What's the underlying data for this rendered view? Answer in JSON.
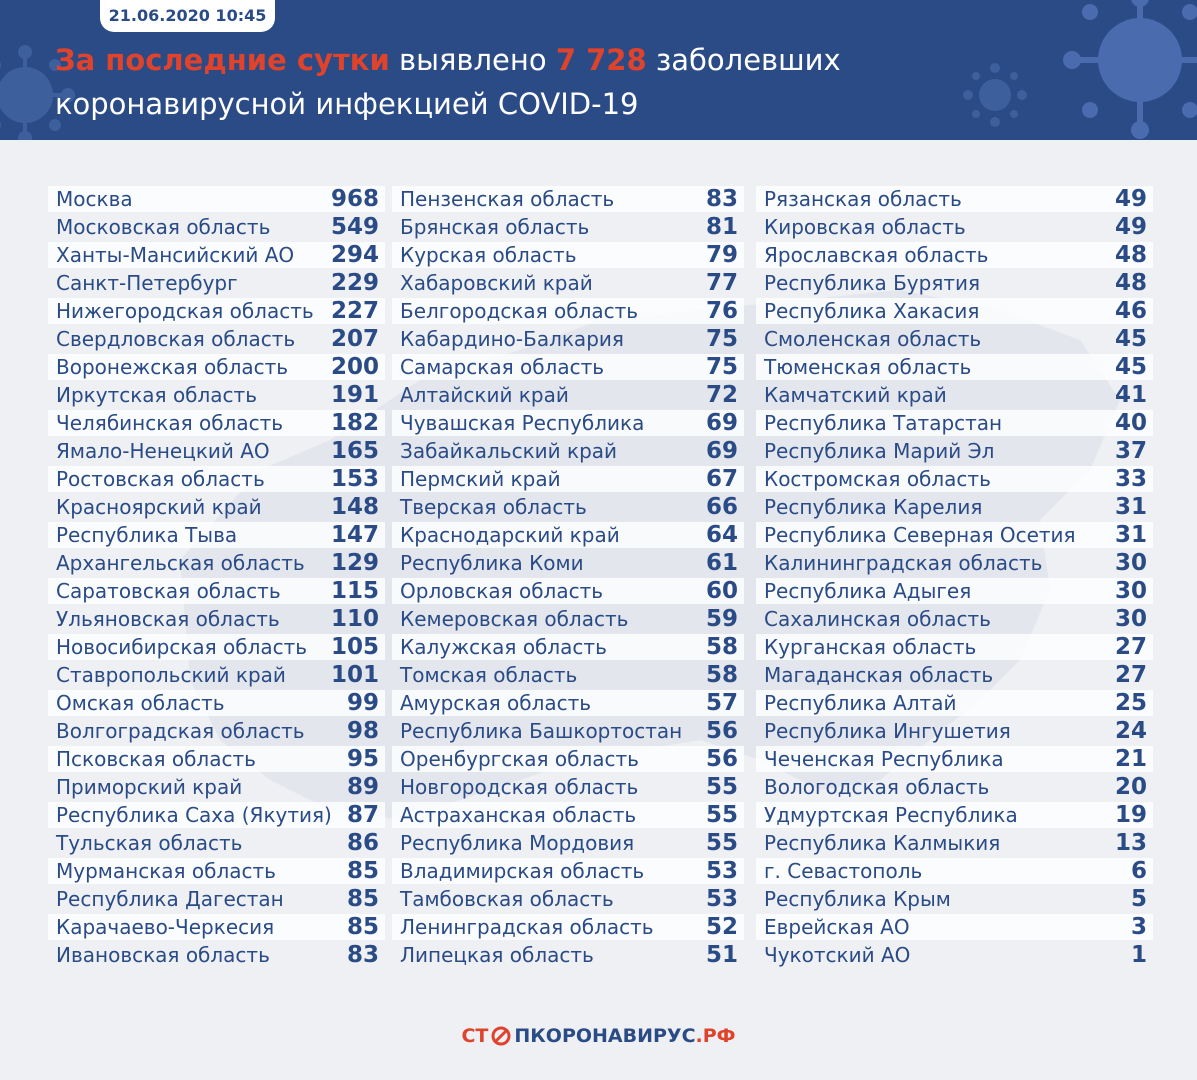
{
  "header": {
    "date": "21.06.2020 10:45",
    "headline_part1": "За последние сутки",
    "headline_part2": " выявлено ",
    "headline_count": "7 728",
    "headline_part3": " заболевших",
    "headline_line2": "коронавирусной инфекцией COVID-19"
  },
  "colors": {
    "navy": "#2a4b86",
    "red": "#e0432b",
    "background": "#eef0f3"
  },
  "columns": [
    [
      {
        "name": "Москва",
        "count": "968"
      },
      {
        "name": "Московская область",
        "count": "549"
      },
      {
        "name": "Ханты-Мансийский АО",
        "count": "294"
      },
      {
        "name": "Санкт-Петербург",
        "count": "229"
      },
      {
        "name": "Нижегородская область",
        "count": "227"
      },
      {
        "name": "Свердловская область",
        "count": "207"
      },
      {
        "name": "Воронежская область",
        "count": "200"
      },
      {
        "name": "Иркутская область",
        "count": "191"
      },
      {
        "name": "Челябинская область",
        "count": "182"
      },
      {
        "name": "Ямало-Ненецкий АО",
        "count": "165"
      },
      {
        "name": "Ростовская область",
        "count": "153"
      },
      {
        "name": "Красноярский край",
        "count": "148"
      },
      {
        "name": "Республика Тыва",
        "count": "147"
      },
      {
        "name": "Архангельская область",
        "count": "129"
      },
      {
        "name": "Саратовская область",
        "count": "115"
      },
      {
        "name": "Ульяновская область",
        "count": "110"
      },
      {
        "name": "Новосибирская область",
        "count": "105"
      },
      {
        "name": "Ставропольский край",
        "count": "101"
      },
      {
        "name": "Омская область",
        "count": "99"
      },
      {
        "name": "Волгоградская область",
        "count": "98"
      },
      {
        "name": "Псковская область",
        "count": "95"
      },
      {
        "name": "Приморский край",
        "count": "89"
      },
      {
        "name": "Республика Саха (Якутия)",
        "count": "87"
      },
      {
        "name": "Тульская область",
        "count": "86"
      },
      {
        "name": "Мурманская область",
        "count": "85"
      },
      {
        "name": "Республика Дагестан",
        "count": "85"
      },
      {
        "name": "Карачаево-Черкесия",
        "count": "85"
      },
      {
        "name": "Ивановская область",
        "count": "83"
      }
    ],
    [
      {
        "name": "Пензенская область",
        "count": "83"
      },
      {
        "name": "Брянская область",
        "count": "81"
      },
      {
        "name": "Курская область",
        "count": "79"
      },
      {
        "name": "Хабаровский край",
        "count": "77"
      },
      {
        "name": "Белгородская область",
        "count": "76"
      },
      {
        "name": "Кабардино-Балкария",
        "count": "75"
      },
      {
        "name": "Самарская область",
        "count": "75"
      },
      {
        "name": "Алтайский край",
        "count": "72"
      },
      {
        "name": "Чувашская Республика",
        "count": "69"
      },
      {
        "name": "Забайкальский край",
        "count": "69"
      },
      {
        "name": "Пермский край",
        "count": "67"
      },
      {
        "name": "Тверская область",
        "count": "66"
      },
      {
        "name": "Краснодарский край",
        "count": "64"
      },
      {
        "name": "Республика Коми",
        "count": "61"
      },
      {
        "name": "Орловская область",
        "count": "60"
      },
      {
        "name": "Кемеровская область",
        "count": "59"
      },
      {
        "name": "Калужская область",
        "count": "58"
      },
      {
        "name": "Томская область",
        "count": "58"
      },
      {
        "name": "Амурская область",
        "count": "57"
      },
      {
        "name": "Республика Башкортостан",
        "count": "56"
      },
      {
        "name": "Оренбургская область",
        "count": "56"
      },
      {
        "name": "Новгородская область",
        "count": "55"
      },
      {
        "name": "Астраханская область",
        "count": "55"
      },
      {
        "name": "Республика Мордовия",
        "count": "55"
      },
      {
        "name": "Владимирская область",
        "count": "53"
      },
      {
        "name": "Тамбовская область",
        "count": "53"
      },
      {
        "name": "Ленинградская область",
        "count": "52"
      },
      {
        "name": "Липецкая область",
        "count": "51"
      }
    ],
    [
      {
        "name": "Рязанская область",
        "count": "49"
      },
      {
        "name": "Кировская область",
        "count": "49"
      },
      {
        "name": "Ярославская область",
        "count": "48"
      },
      {
        "name": "Республика Бурятия",
        "count": "48"
      },
      {
        "name": "Республика Хакасия",
        "count": "46"
      },
      {
        "name": "Смоленская область",
        "count": "45"
      },
      {
        "name": "Тюменская область",
        "count": "45"
      },
      {
        "name": "Камчатский край",
        "count": "41"
      },
      {
        "name": "Республика Татарстан",
        "count": "40"
      },
      {
        "name": "Республика Марий Эл",
        "count": "37"
      },
      {
        "name": "Костромская область",
        "count": "33"
      },
      {
        "name": "Республика Карелия",
        "count": "31"
      },
      {
        "name": "Республика Северная Осетия",
        "count": "31"
      },
      {
        "name": "Калининградская область",
        "count": "30"
      },
      {
        "name": "Республика Адыгея",
        "count": "30"
      },
      {
        "name": "Сахалинская область",
        "count": "30"
      },
      {
        "name": "Курганская область",
        "count": "27"
      },
      {
        "name": "Магаданская область",
        "count": "27"
      },
      {
        "name": "Республика Алтай",
        "count": "25"
      },
      {
        "name": "Республика Ингушетия",
        "count": "24"
      },
      {
        "name": "Чеченская Республика",
        "count": "21"
      },
      {
        "name": "Вологодская область",
        "count": "20"
      },
      {
        "name": "Удмуртская Республика",
        "count": "19"
      },
      {
        "name": "Республика Калмыкия",
        "count": "13"
      },
      {
        "name": "г. Севастополь",
        "count": "6"
      },
      {
        "name": "Республика Крым",
        "count": "5"
      },
      {
        "name": "Еврейская АО",
        "count": "3"
      },
      {
        "name": "Чукотский АО",
        "count": "1"
      }
    ]
  ],
  "footer": {
    "logo_part1": "СТ",
    "logo_part2": "ПКОРОНАВИРУС",
    "logo_part3": ".РФ"
  }
}
